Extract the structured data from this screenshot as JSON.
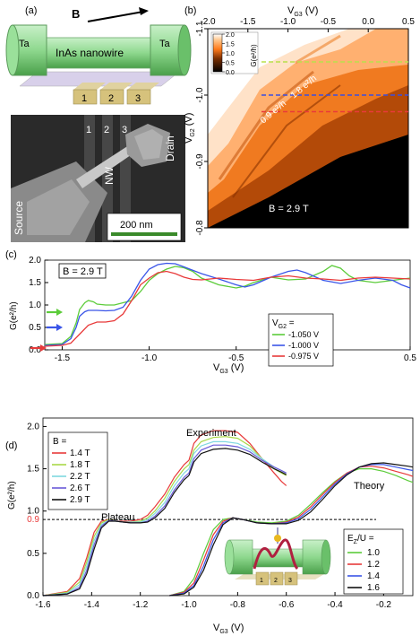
{
  "panel_a": {
    "label": "(a)",
    "field_label": "B",
    "left_electrode": "Ta",
    "right_electrode": "Ta",
    "wire_label": "InAs nanowire",
    "gates": [
      "1",
      "2",
      "3"
    ],
    "sem": {
      "gates": [
        "1",
        "2",
        "3"
      ],
      "nw_label": "NW",
      "source_label": "Source",
      "drain_label": "Drain",
      "scale_bar": "200 nm"
    }
  },
  "panel_b": {
    "label": "(b)",
    "x_title": "V",
    "x_sub": "G3",
    "x_unit": " (V)",
    "y_title": "V",
    "y_sub": "G2",
    "y_unit": " (V)",
    "x_ticks": [
      "-2.0",
      "-1.5",
      "-1.0",
      "-0.5",
      "0.0",
      "0.5"
    ],
    "y_ticks": [
      "-1.1",
      "-1.0",
      "-0.9",
      "-0.8"
    ],
    "colorbar_title": "G(e²/h)",
    "colorbar_ticks": [
      "2.0",
      "1.5",
      "1.0",
      "0.5",
      "0.0"
    ],
    "annot_09": "0.9 e²/h",
    "annot_18": "1.8 e²/h",
    "field": "B = 2.9 T",
    "cut_colors": [
      "#b8e04a",
      "#3b4ee0",
      "#e83a3a"
    ]
  },
  "panel_c": {
    "label": "(c)",
    "field_box": "B = 2.9 T",
    "y_title": "G(e²/h)",
    "x_title": "V",
    "x_sub": "G3",
    "x_unit": " (V)",
    "x_ticks": [
      "-1.5",
      "-1.0",
      "-0.5",
      "0",
      "0.5"
    ],
    "y_ticks": [
      "0.0",
      "0.5",
      "1.0",
      "1.5",
      "2.0"
    ],
    "legend_title": "V",
    "legend_title_sub": "G2",
    "legend_title_tail": " =",
    "legend_entries": [
      "-1.050 V",
      "-1.000 V",
      "-0.975 V"
    ],
    "colors": [
      "#5ccc3a",
      "#3a55e8",
      "#e83a3a"
    ]
  },
  "panel_d": {
    "label": "(d)",
    "y_title": "G(e²/h)",
    "x_title": "V",
    "x_sub": "G3",
    "x_unit": " (V)",
    "x_ticks": [
      "-1.6",
      "-1.4",
      "-1.2",
      "-1.0",
      "-0.8",
      "-0.6",
      "-0.4",
      "-0.2"
    ],
    "y_ticks": [
      "0.0",
      "0.5",
      "1.0",
      "1.5",
      "2.0"
    ],
    "plateau_tick": "0.9",
    "experiment_label": "Experiment",
    "theory_label": "Theory",
    "plateau_label": "Plateau",
    "b_legend_title": "B =",
    "b_legend": [
      "1.4 T",
      "1.8 T",
      "2.2 T",
      "2.6 T",
      "2.9 T"
    ],
    "b_colors": [
      "#e83a3a",
      "#a8d848",
      "#7fd8e0",
      "#6a5ad8",
      "#111111"
    ],
    "e_legend_title": "E",
    "e_legend_sub": "Z",
    "e_legend_tail": "/U =",
    "e_legend": [
      "1.0",
      "1.2",
      "1.4",
      "1.6"
    ],
    "e_colors": [
      "#5ccc3a",
      "#e83a3a",
      "#3a55e8",
      "#111111"
    ],
    "inset_gates": [
      "1",
      "2",
      "3"
    ]
  },
  "chart_data": [
    {
      "type": "heatmap",
      "title": "",
      "xlabel": "VG3 (V)",
      "ylabel": "VG2 (V)",
      "xlim": [
        -2.0,
        0.5
      ],
      "ylim": [
        -1.1,
        -0.8
      ],
      "colorbar": {
        "label": "G(e²/h)",
        "range": [
          0.0,
          2.0
        ]
      },
      "cuts": [
        {
          "VG2": -1.05,
          "color": "#b8e04a"
        },
        {
          "VG2": -1.0,
          "color": "#3b4ee0"
        },
        {
          "VG2": -0.975,
          "color": "#e83a3a"
        }
      ],
      "annotations": [
        "0.9 e²/h",
        "1.8 e²/h",
        "B = 2.9 T"
      ]
    },
    {
      "type": "line",
      "title": "B = 2.9 T",
      "xlabel": "VG3 (V)",
      "ylabel": "G(e²/h)",
      "xlim": [
        -1.6,
        0.5
      ],
      "ylim": [
        0.0,
        2.0
      ],
      "series": [
        {
          "name": "-1.050 V",
          "color": "#5ccc3a",
          "x": [
            -1.6,
            -1.5,
            -1.45,
            -1.42,
            -1.4,
            -1.37,
            -1.35,
            -1.32,
            -1.3,
            -1.25,
            -1.2,
            -1.15,
            -1.1,
            -1.05,
            -1.0,
            -0.95,
            -0.9,
            -0.85,
            -0.8,
            -0.75,
            -0.7,
            -0.6,
            -0.5,
            -0.45,
            -0.4,
            -0.3,
            -0.2,
            -0.1,
            0.0,
            0.05,
            0.1,
            0.15,
            0.2,
            0.3,
            0.4,
            0.5
          ],
          "y": [
            0.12,
            0.14,
            0.3,
            0.6,
            0.9,
            1.05,
            1.1,
            1.07,
            1.02,
            1.0,
            1.0,
            1.05,
            1.1,
            1.3,
            1.55,
            1.7,
            1.8,
            1.86,
            1.83,
            1.75,
            1.6,
            1.45,
            1.38,
            1.42,
            1.5,
            1.62,
            1.56,
            1.58,
            1.75,
            1.88,
            1.82,
            1.65,
            1.55,
            1.5,
            1.55,
            1.6
          ]
        },
        {
          "name": "-1.000 V",
          "color": "#3a55e8",
          "x": [
            -1.6,
            -1.5,
            -1.45,
            -1.42,
            -1.4,
            -1.37,
            -1.35,
            -1.3,
            -1.25,
            -1.2,
            -1.15,
            -1.1,
            -1.05,
            -1.0,
            -0.95,
            -0.9,
            -0.85,
            -0.8,
            -0.7,
            -0.6,
            -0.5,
            -0.45,
            -0.4,
            -0.3,
            -0.2,
            -0.15,
            -0.1,
            0.0,
            0.1,
            0.2,
            0.3,
            0.4,
            0.45,
            0.5
          ],
          "y": [
            0.1,
            0.12,
            0.25,
            0.5,
            0.75,
            0.85,
            0.88,
            0.88,
            0.87,
            0.88,
            0.95,
            1.2,
            1.55,
            1.8,
            1.9,
            1.93,
            1.92,
            1.85,
            1.7,
            1.58,
            1.45,
            1.4,
            1.45,
            1.62,
            1.75,
            1.78,
            1.72,
            1.55,
            1.48,
            1.55,
            1.6,
            1.55,
            1.45,
            1.38
          ]
        },
        {
          "name": "-0.975 V",
          "color": "#e83a3a",
          "x": [
            -1.6,
            -1.5,
            -1.45,
            -1.4,
            -1.35,
            -1.3,
            -1.25,
            -1.2,
            -1.15,
            -1.1,
            -1.05,
            -1.0,
            -0.95,
            -0.9,
            -0.85,
            -0.8,
            -0.75,
            -0.7,
            -0.6,
            -0.5,
            -0.4,
            -0.3,
            -0.2,
            -0.1,
            0.0,
            0.1,
            0.2,
            0.3,
            0.4,
            0.5
          ],
          "y": [
            0.08,
            0.1,
            0.15,
            0.35,
            0.55,
            0.62,
            0.62,
            0.65,
            0.8,
            1.1,
            1.45,
            1.6,
            1.72,
            1.75,
            1.7,
            1.62,
            1.57,
            1.56,
            1.6,
            1.57,
            1.55,
            1.62,
            1.65,
            1.6,
            1.58,
            1.55,
            1.6,
            1.62,
            1.6,
            1.58
          ]
        }
      ]
    },
    {
      "type": "line",
      "title": "",
      "xlabel": "VG3 (V)",
      "ylabel": "G(e²/h)",
      "xlim": [
        -1.6,
        -0.08
      ],
      "ylim": [
        0.0,
        2.1
      ],
      "reference_line": 0.9,
      "series": [
        {
          "name": "1.4 T",
          "color": "#e83a3a",
          "group": "Experiment",
          "x": [
            -1.0,
            -0.98,
            -0.95,
            -0.9,
            -0.85,
            -0.8,
            -0.75,
            -0.7,
            -0.65,
            -0.62,
            -0.6
          ],
          "y": [
            1.6,
            1.8,
            1.9,
            1.95,
            1.95,
            1.93,
            1.8,
            1.62,
            1.45,
            1.35,
            1.3
          ]
        },
        {
          "name": "1.8 T",
          "color": "#a8d848",
          "group": "Experiment",
          "x": [
            -1.0,
            -0.98,
            -0.95,
            -0.9,
            -0.85,
            -0.8,
            -0.75,
            -0.7,
            -0.65,
            -0.62,
            -0.6
          ],
          "y": [
            1.55,
            1.72,
            1.82,
            1.87,
            1.88,
            1.86,
            1.77,
            1.62,
            1.5,
            1.45,
            1.42
          ]
        },
        {
          "name": "2.2 T",
          "color": "#7fd8e0",
          "group": "Experiment",
          "x": [
            -1.0,
            -0.98,
            -0.95,
            -0.9,
            -0.85,
            -0.8,
            -0.75,
            -0.7,
            -0.65,
            -0.62,
            -0.6
          ],
          "y": [
            1.5,
            1.68,
            1.77,
            1.82,
            1.82,
            1.8,
            1.73,
            1.62,
            1.52,
            1.48,
            1.45
          ]
        },
        {
          "name": "2.6 T",
          "color": "#6a5ad8",
          "group": "Experiment",
          "x": [
            -1.0,
            -0.98,
            -0.95,
            -0.9,
            -0.85,
            -0.8,
            -0.75,
            -0.7,
            -0.65,
            -0.62,
            -0.6
          ],
          "y": [
            1.45,
            1.62,
            1.72,
            1.78,
            1.78,
            1.76,
            1.7,
            1.6,
            1.52,
            1.48,
            1.45
          ]
        },
        {
          "name": "2.9 T",
          "color": "#111111",
          "group": "Experiment",
          "x": [
            -1.0,
            -0.98,
            -0.95,
            -0.9,
            -0.85,
            -0.8,
            -0.75,
            -0.7,
            -0.65,
            -0.62,
            -0.6
          ],
          "y": [
            1.42,
            1.58,
            1.68,
            1.73,
            1.74,
            1.72,
            1.67,
            1.58,
            1.5,
            1.46,
            1.43
          ]
        },
        {
          "name": "1.0",
          "color": "#5ccc3a",
          "group": "Theory",
          "x": [
            -1.08,
            -1.02,
            -0.98,
            -0.94,
            -0.9,
            -0.86,
            -0.82,
            -0.78,
            -0.72,
            -0.66,
            -0.6,
            -0.55,
            -0.5,
            -0.45,
            -0.4,
            -0.35,
            -0.3,
            -0.25,
            -0.2,
            -0.15,
            -0.1,
            -0.08
          ],
          "y": [
            0.0,
            0.05,
            0.2,
            0.5,
            0.78,
            0.9,
            0.92,
            0.9,
            0.87,
            0.86,
            0.88,
            0.95,
            1.08,
            1.22,
            1.35,
            1.45,
            1.5,
            1.5,
            1.47,
            1.42,
            1.36,
            1.34
          ]
        },
        {
          "name": "1.2",
          "color": "#e83a3a",
          "group": "Theory",
          "x": [
            -1.08,
            -1.02,
            -0.98,
            -0.94,
            -0.9,
            -0.86,
            -0.82,
            -0.78,
            -0.72,
            -0.66,
            -0.6,
            -0.55,
            -0.5,
            -0.45,
            -0.4,
            -0.35,
            -0.3,
            -0.25,
            -0.2,
            -0.15,
            -0.1,
            -0.08
          ],
          "y": [
            0.0,
            0.04,
            0.15,
            0.42,
            0.72,
            0.88,
            0.92,
            0.9,
            0.86,
            0.85,
            0.87,
            0.93,
            1.05,
            1.2,
            1.34,
            1.45,
            1.52,
            1.53,
            1.51,
            1.47,
            1.43,
            1.41
          ]
        },
        {
          "name": "1.4",
          "color": "#3a55e8",
          "group": "Theory",
          "x": [
            -1.08,
            -1.02,
            -0.98,
            -0.94,
            -0.9,
            -0.86,
            -0.82,
            -0.78,
            -0.72,
            -0.66,
            -0.6,
            -0.55,
            -0.5,
            -0.45,
            -0.4,
            -0.35,
            -0.3,
            -0.25,
            -0.2,
            -0.15,
            -0.1,
            -0.08
          ],
          "y": [
            0.0,
            0.03,
            0.12,
            0.35,
            0.66,
            0.86,
            0.92,
            0.9,
            0.86,
            0.85,
            0.86,
            0.91,
            1.02,
            1.17,
            1.32,
            1.44,
            1.52,
            1.55,
            1.55,
            1.52,
            1.49,
            1.48
          ]
        },
        {
          "name": "1.6",
          "color": "#111111",
          "group": "Theory",
          "x": [
            -1.08,
            -1.02,
            -0.98,
            -0.94,
            -0.9,
            -0.86,
            -0.82,
            -0.78,
            -0.72,
            -0.66,
            -0.6,
            -0.55,
            -0.5,
            -0.45,
            -0.4,
            -0.35,
            -0.3,
            -0.25,
            -0.2,
            -0.15,
            -0.1,
            -0.08
          ],
          "y": [
            0.0,
            0.02,
            0.1,
            0.3,
            0.6,
            0.84,
            0.92,
            0.9,
            0.86,
            0.85,
            0.85,
            0.89,
            0.99,
            1.14,
            1.3,
            1.43,
            1.52,
            1.56,
            1.57,
            1.55,
            1.53,
            1.52
          ]
        },
        {
          "name": "1.4 T plateau",
          "color": "#e83a3a",
          "group": "Experiment-low",
          "x": [
            -1.6,
            -1.5,
            -1.45,
            -1.42,
            -1.39,
            -1.36,
            -1.33,
            -1.3,
            -1.27,
            -1.24,
            -1.2,
            -1.17,
            -1.14,
            -1.1,
            -1.06,
            -1.02,
            -1.0
          ],
          "y": [
            0.0,
            0.05,
            0.2,
            0.45,
            0.75,
            0.88,
            0.9,
            0.88,
            0.88,
            0.88,
            0.9,
            0.95,
            1.05,
            1.2,
            1.4,
            1.55,
            1.6
          ]
        },
        {
          "name": "1.8 T plateau",
          "color": "#a8d848",
          "group": "Experiment-low",
          "x": [
            -1.6,
            -1.5,
            -1.45,
            -1.42,
            -1.39,
            -1.36,
            -1.33,
            -1.3,
            -1.27,
            -1.24,
            -1.2,
            -1.17,
            -1.14,
            -1.1,
            -1.06,
            -1.02,
            -1.0
          ],
          "y": [
            0.0,
            0.04,
            0.16,
            0.4,
            0.7,
            0.86,
            0.9,
            0.88,
            0.87,
            0.87,
            0.88,
            0.92,
            1.0,
            1.15,
            1.35,
            1.5,
            1.55
          ]
        },
        {
          "name": "2.2 T plateau",
          "color": "#7fd8e0",
          "group": "Experiment-low",
          "x": [
            -1.6,
            -1.5,
            -1.45,
            -1.42,
            -1.39,
            -1.36,
            -1.33,
            -1.3,
            -1.27,
            -1.24,
            -1.2,
            -1.17,
            -1.14,
            -1.1,
            -1.06,
            -1.02,
            -1.0
          ],
          "y": [
            0.0,
            0.03,
            0.13,
            0.35,
            0.65,
            0.84,
            0.89,
            0.88,
            0.87,
            0.87,
            0.87,
            0.9,
            0.97,
            1.1,
            1.3,
            1.45,
            1.5
          ]
        },
        {
          "name": "2.6 T plateau",
          "color": "#6a5ad8",
          "group": "Experiment-low",
          "x": [
            -1.6,
            -1.5,
            -1.45,
            -1.42,
            -1.39,
            -1.36,
            -1.33,
            -1.3,
            -1.27,
            -1.24,
            -1.2,
            -1.17,
            -1.14,
            -1.1,
            -1.06,
            -1.02,
            -1.0
          ],
          "y": [
            0.0,
            0.02,
            0.1,
            0.3,
            0.6,
            0.82,
            0.89,
            0.88,
            0.87,
            0.86,
            0.86,
            0.88,
            0.94,
            1.06,
            1.25,
            1.4,
            1.45
          ]
        },
        {
          "name": "2.9 T plateau",
          "color": "#111111",
          "group": "Experiment-low",
          "x": [
            -1.6,
            -1.5,
            -1.45,
            -1.42,
            -1.39,
            -1.36,
            -1.33,
            -1.3,
            -1.27,
            -1.24,
            -1.2,
            -1.17,
            -1.14,
            -1.1,
            -1.06,
            -1.02,
            -1.0
          ],
          "y": [
            0.0,
            0.02,
            0.08,
            0.26,
            0.55,
            0.8,
            0.88,
            0.88,
            0.87,
            0.86,
            0.86,
            0.87,
            0.92,
            1.03,
            1.22,
            1.37,
            1.42
          ]
        }
      ]
    }
  ]
}
